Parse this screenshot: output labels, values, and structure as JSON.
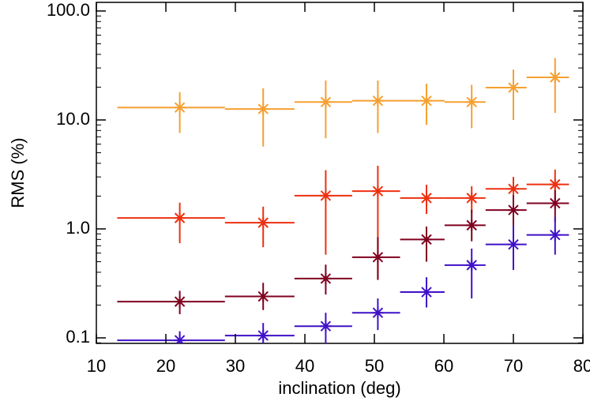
{
  "chart_data": {
    "type": "errorbar",
    "xlabel": "inclination (deg)",
    "ylabel": "RMS (%)",
    "x": [
      22,
      34,
      43,
      50.5,
      57.5,
      64,
      70,
      76
    ],
    "x_low": [
      13,
      28.5,
      38.5,
      46.8,
      53.7,
      60.1,
      66,
      71.9
    ],
    "x_high": [
      28.5,
      38.5,
      46.8,
      53.7,
      60.1,
      66,
      71.9,
      78
    ],
    "xlim": [
      10,
      80
    ],
    "xticks": [
      10,
      20,
      30,
      40,
      50,
      60,
      70,
      80
    ],
    "ylim": [
      0.089,
      120
    ],
    "yticks": [
      0.1,
      {
        "value": 1,
        "label": "1.0"
      },
      {
        "value": 10,
        "label": "10.0"
      },
      {
        "value": 100,
        "label": "100.0"
      }
    ],
    "log_y": true,
    "series": [
      {
        "color": "#f5a030",
        "values": [
          13.0,
          12.6,
          14.6,
          15.0,
          15.0,
          14.6,
          19.8,
          24.6
        ],
        "y_low": [
          7.6,
          5.7,
          6.8,
          7.6,
          9.0,
          8.4,
          10.0,
          11.6
        ],
        "y_high": [
          18,
          19.5,
          23,
          23,
          21.5,
          21,
          29,
          37
        ]
      },
      {
        "color": "#ee3010",
        "values": [
          1.26,
          1.14,
          2.02,
          2.22,
          1.92,
          1.92,
          2.33,
          2.56
        ],
        "y_low": [
          0.74,
          0.68,
          0.58,
          0.35,
          1.37,
          1.4,
          1.77,
          1.9
        ],
        "y_high": [
          1.74,
          1.6,
          3.46,
          3.8,
          2.54,
          2.46,
          3.0,
          3.5
        ]
      },
      {
        "color": "#800020",
        "values": [
          0.215,
          0.24,
          0.35,
          0.55,
          0.8,
          1.08,
          1.49,
          1.72
        ],
        "y_low": [
          0.165,
          0.18,
          0.25,
          0.34,
          0.5,
          0.77,
          0.96,
          1.16
        ],
        "y_high": [
          0.27,
          0.32,
          0.47,
          0.84,
          1.05,
          1.5,
          2.05,
          2.26
        ]
      },
      {
        "color": "#4010c8",
        "values": [
          0.095,
          0.105,
          0.128,
          0.17,
          0.263,
          0.465,
          0.72,
          0.88
        ],
        "y_low": [
          0.08,
          0.085,
          0.085,
          0.118,
          0.19,
          0.23,
          0.42,
          0.58
        ],
        "y_high": [
          0.115,
          0.137,
          0.17,
          0.23,
          0.36,
          0.66,
          1.07,
          1.28
        ]
      }
    ]
  }
}
